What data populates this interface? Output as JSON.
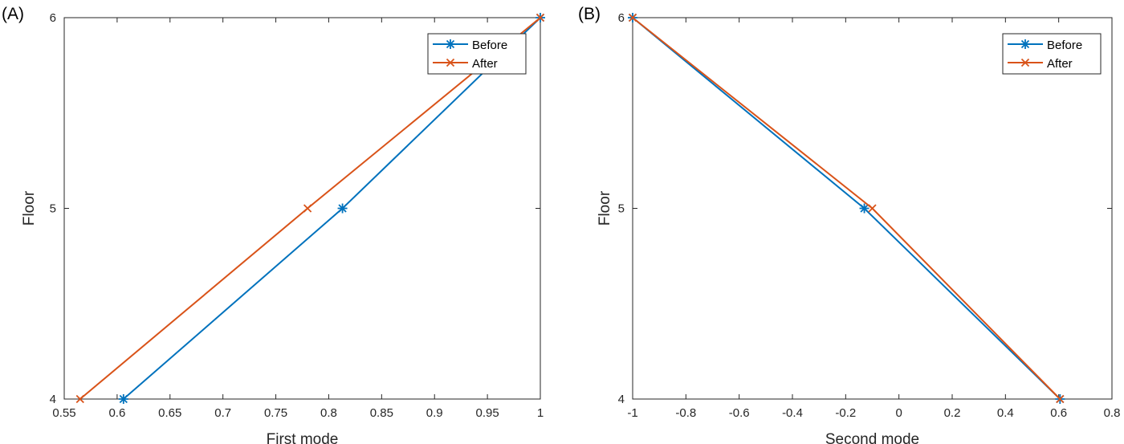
{
  "chart_data": [
    {
      "type": "line",
      "panel_label": "(A)",
      "xlabel": "First mode",
      "ylabel": "Floor",
      "xlim": [
        0.55,
        1.0
      ],
      "ylim": [
        4,
        6
      ],
      "xticks": [
        "0.55",
        "0.6",
        "0.65",
        "0.7",
        "0.75",
        "0.8",
        "0.85",
        "0.9",
        "0.95",
        "1"
      ],
      "xtick_values": [
        0.55,
        0.6,
        0.65,
        0.7,
        0.75,
        0.8,
        0.85,
        0.9,
        0.95,
        1.0
      ],
      "yticks": [
        "4",
        "5",
        "6"
      ],
      "ytick_values": [
        4,
        5,
        6
      ],
      "grid": false,
      "legend_position": "top-right",
      "series": [
        {
          "name": "Before",
          "color": "#0072BD",
          "marker": "asterisk",
          "x": [
            0.606,
            0.813,
            1.0
          ],
          "y": [
            4,
            5,
            6
          ]
        },
        {
          "name": "After",
          "color": "#D95319",
          "marker": "cross",
          "x": [
            0.565,
            0.78,
            1.0
          ],
          "y": [
            4,
            5,
            6
          ]
        }
      ]
    },
    {
      "type": "line",
      "panel_label": "(B)",
      "xlabel": "Second mode",
      "ylabel": "Floor",
      "xlim": [
        -1.0,
        0.8
      ],
      "ylim": [
        4,
        6
      ],
      "xticks": [
        "-1",
        "-0.8",
        "-0.6",
        "-0.4",
        "-0.2",
        "0",
        "0.2",
        "0.4",
        "0.6",
        "0.8"
      ],
      "xtick_values": [
        -1.0,
        -0.8,
        -0.6,
        -0.4,
        -0.2,
        0,
        0.2,
        0.4,
        0.6,
        0.8
      ],
      "yticks": [
        "4",
        "5",
        "6"
      ],
      "ytick_values": [
        4,
        5,
        6
      ],
      "grid": false,
      "legend_position": "top-right",
      "series": [
        {
          "name": "Before",
          "color": "#0072BD",
          "marker": "asterisk",
          "x": [
            -1.0,
            -0.13,
            0.605
          ],
          "y": [
            6,
            5,
            4
          ]
        },
        {
          "name": "After",
          "color": "#D95319",
          "marker": "cross",
          "x": [
            -1.0,
            -0.1,
            0.605
          ],
          "y": [
            6,
            5,
            4
          ]
        }
      ]
    }
  ]
}
